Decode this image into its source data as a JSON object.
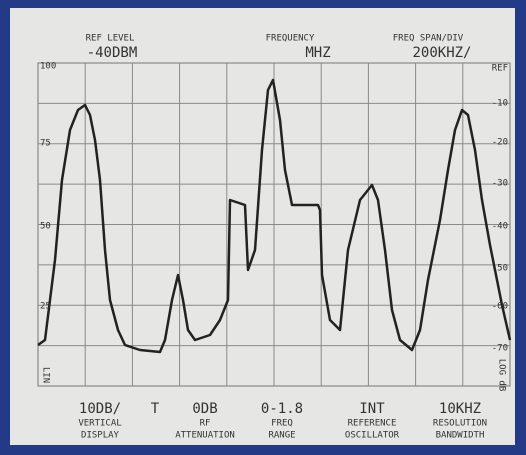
{
  "header": {
    "ref_level": {
      "label": "REF LEVEL",
      "value": "-40DBM"
    },
    "frequency": {
      "label": "FREQUENCY",
      "value": "MHZ"
    },
    "freq_span": {
      "label": "FREQ SPAN/DIV",
      "value": "200KHZ/"
    }
  },
  "scale_left": [
    "100",
    "75",
    "50",
    "25"
  ],
  "scale_left_mode": "LIN",
  "scale_right": [
    "REF",
    "-10",
    "-20",
    "-30",
    "-40",
    "-50",
    "-60",
    "-70"
  ],
  "scale_right_mode": "LOG dB",
  "marker": "T",
  "settings": [
    {
      "value": "10DB/",
      "label1": "VERTICAL",
      "label2": "DISPLAY"
    },
    {
      "value": "0DB",
      "label1": "RF",
      "label2": "ATTENUATION"
    },
    {
      "value": "0-1.8",
      "label1": "FREQ",
      "label2": "RANGE"
    },
    {
      "value": "INT",
      "label1": "REFERENCE",
      "label2": "OSCILLATOR"
    },
    {
      "value": "10KHZ",
      "label1": "RESOLUTION",
      "label2": "BANDWIDTH"
    }
  ]
}
